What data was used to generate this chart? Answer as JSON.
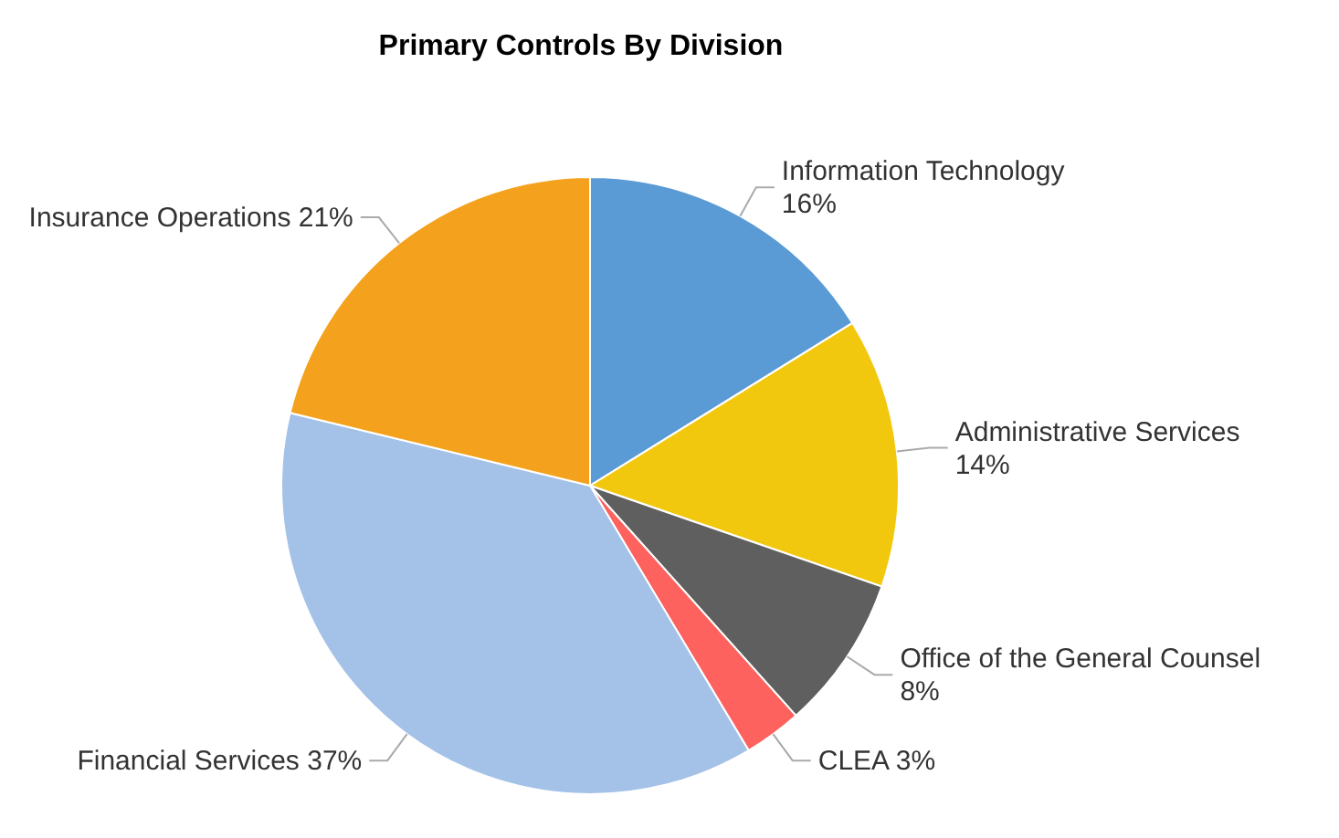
{
  "chart_data": {
    "type": "pie",
    "title": "Primary Controls By Division",
    "categories": [
      "Information Technology",
      "Administrative Services",
      "Office of the General Counsel",
      "CLEA",
      "Financial Services",
      "Insurance Operations"
    ],
    "values": [
      16,
      14,
      8,
      3,
      37,
      21
    ],
    "value_labels": [
      "16%",
      "14%",
      "8%",
      "3%",
      "37%",
      "21%"
    ],
    "colors": [
      "#5b9bd5",
      "#f2c80f",
      "#5f5f5f",
      "#fd625e",
      "#a4c2e8",
      "#f4a21d"
    ],
    "legend": false
  }
}
